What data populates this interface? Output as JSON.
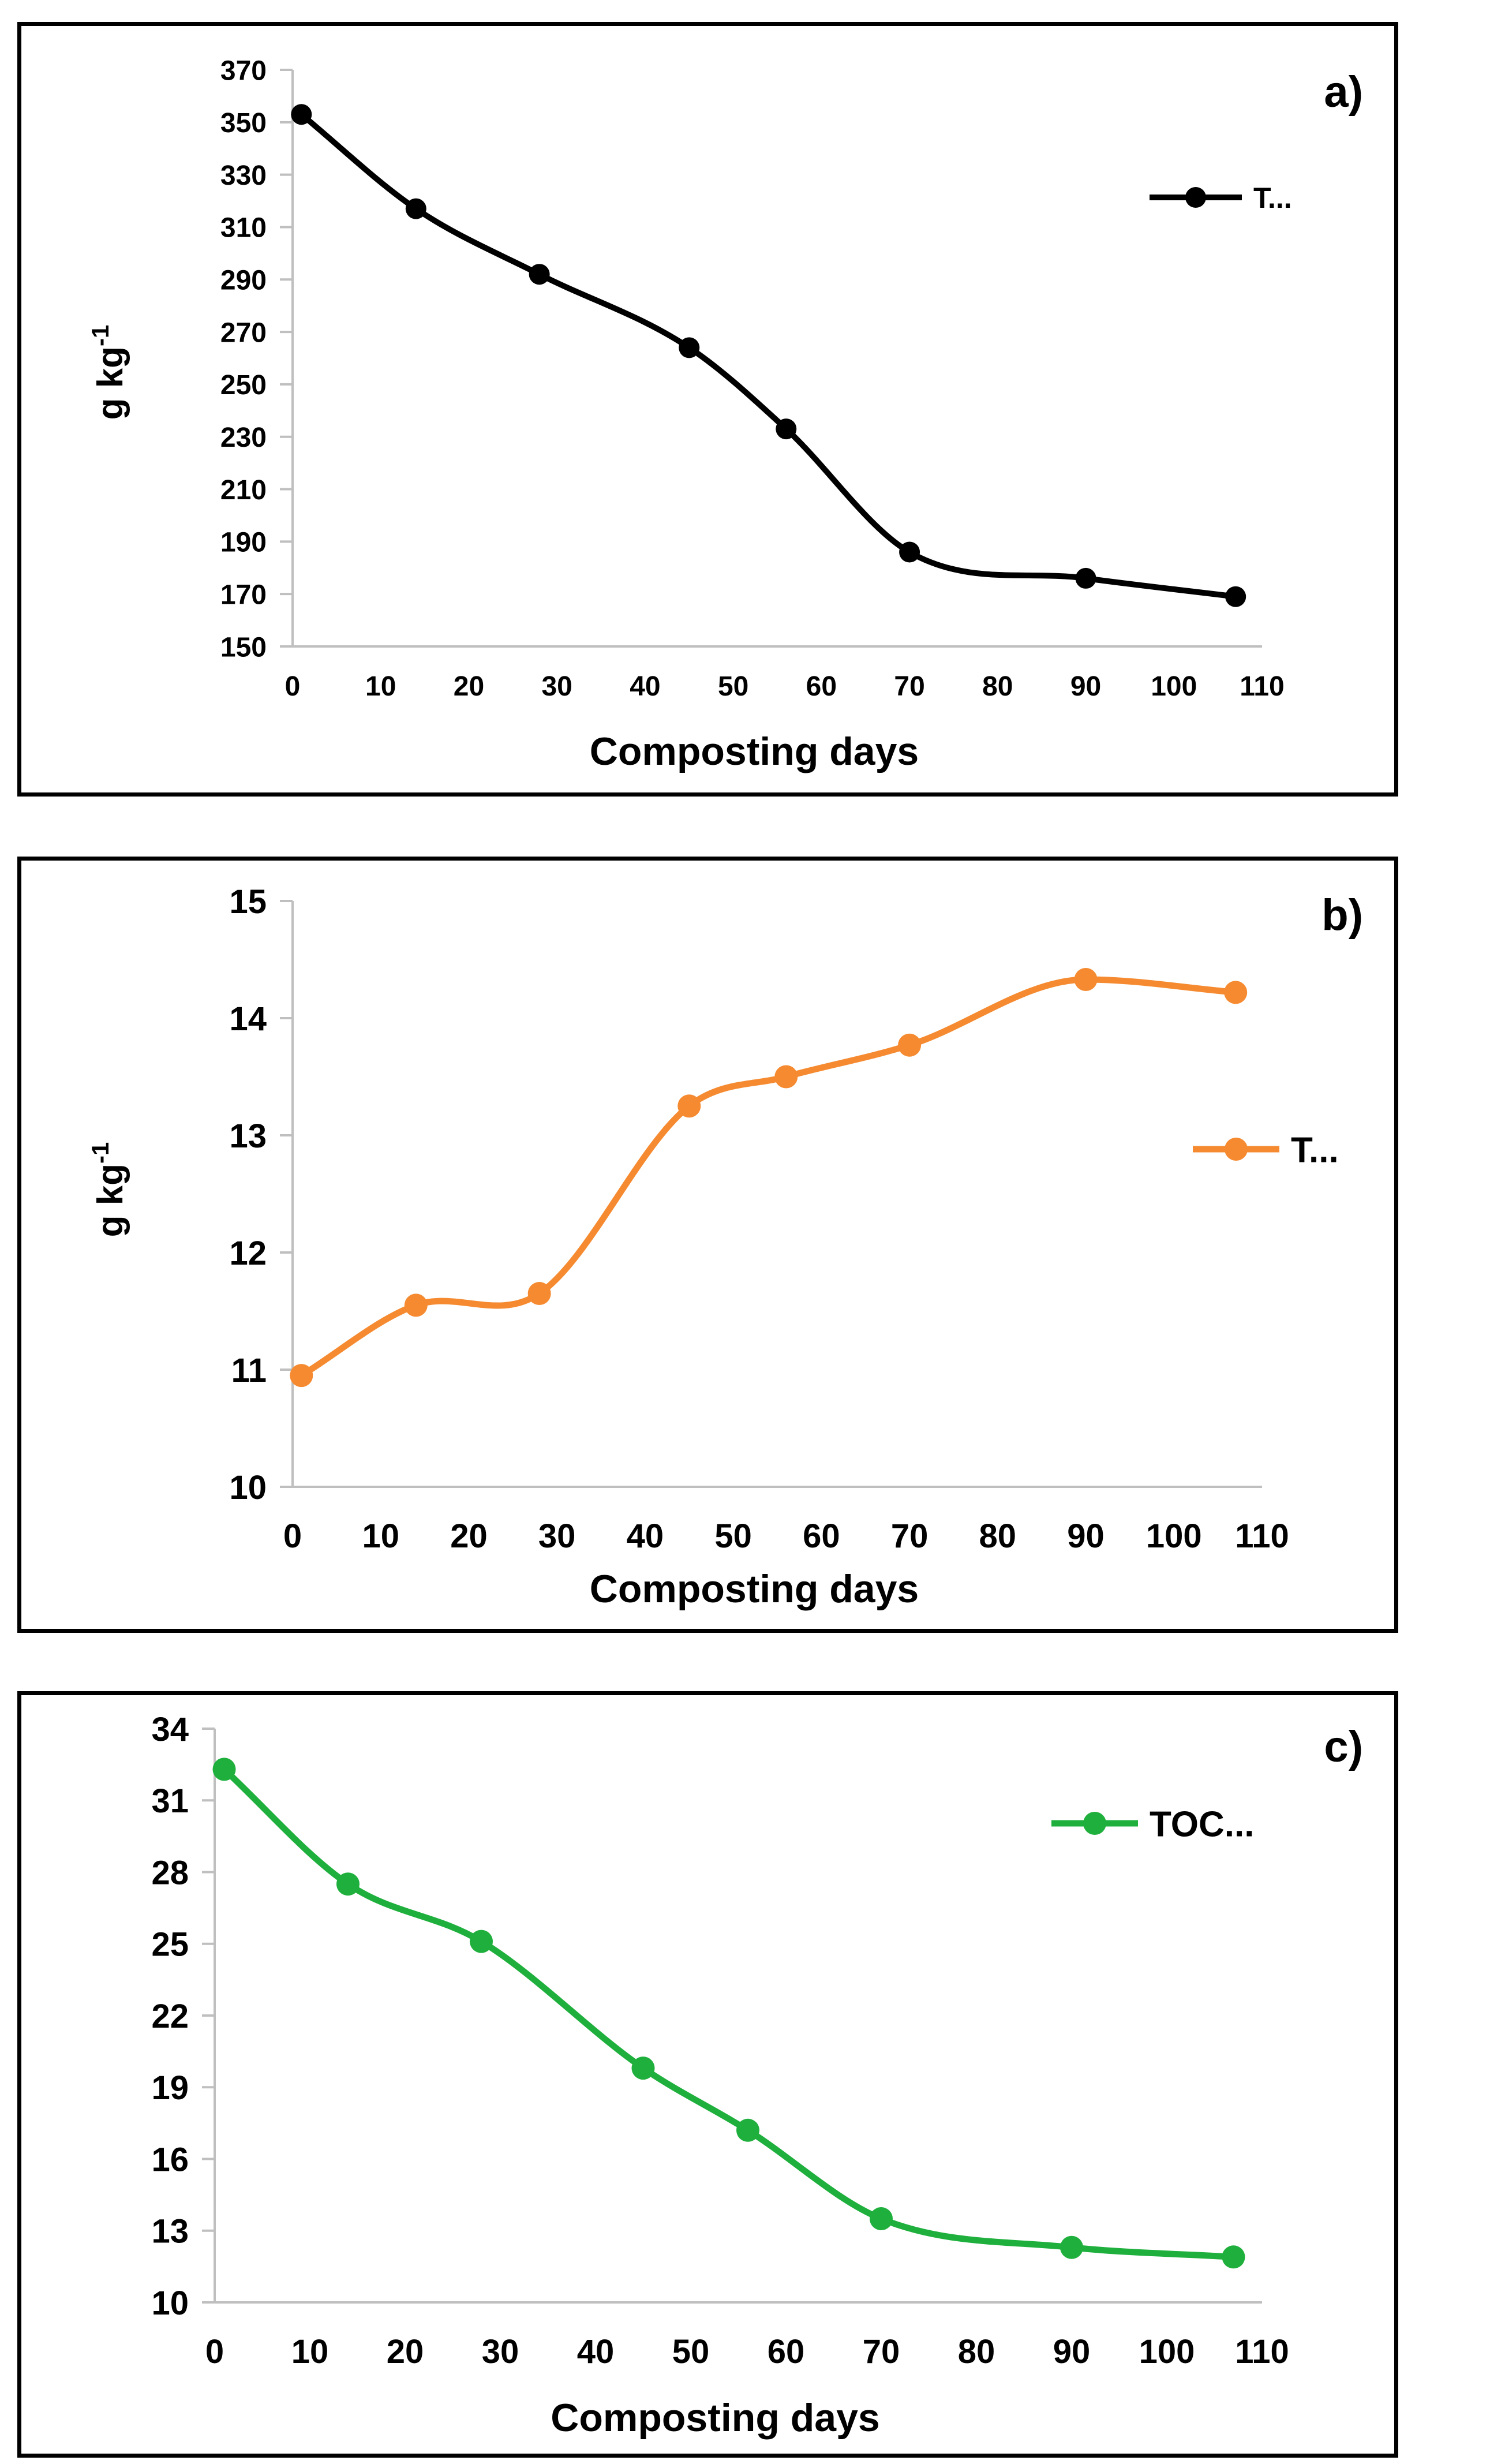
{
  "chart_data": [
    {
      "panel": "a)",
      "type": "line",
      "xlabel": "Composting days",
      "ylabel": "g kg",
      "ylabel_sup": "-1",
      "xlim": [
        0,
        110
      ],
      "ylim": [
        150,
        370
      ],
      "xticks": [
        0,
        10,
        20,
        30,
        40,
        50,
        60,
        70,
        80,
        90,
        100,
        110
      ],
      "yticks": [
        150,
        170,
        190,
        210,
        230,
        250,
        270,
        290,
        310,
        330,
        350,
        370
      ],
      "legend": "T...",
      "legend_position": "top-right",
      "color": "#000000",
      "series": [
        {
          "name": "T...",
          "x": [
            1,
            14,
            28,
            45,
            56,
            70,
            90,
            107
          ],
          "values": [
            353,
            317,
            292,
            264,
            233,
            186,
            176,
            169
          ]
        }
      ]
    },
    {
      "panel": "b)",
      "type": "line",
      "xlabel": "Composting days",
      "ylabel": "g kg",
      "ylabel_sup": "-1",
      "xlim": [
        0,
        110
      ],
      "ylim": [
        10,
        15
      ],
      "xticks": [
        0,
        10,
        20,
        30,
        40,
        50,
        60,
        70,
        80,
        90,
        100,
        110
      ],
      "yticks": [
        10,
        11,
        12,
        13,
        14,
        15
      ],
      "legend": "T...",
      "legend_position": "right",
      "color": "#F58A30",
      "series": [
        {
          "name": "T...",
          "x": [
            1,
            14,
            28,
            45,
            56,
            70,
            90,
            107
          ],
          "values": [
            10.95,
            11.55,
            11.65,
            13.25,
            13.5,
            13.77,
            14.33,
            14.22
          ]
        }
      ]
    },
    {
      "panel": "c)",
      "type": "line",
      "xlabel": "Composting days",
      "ylabel": "",
      "ylabel_sup": "",
      "xlim": [
        0,
        110
      ],
      "ylim": [
        10,
        34
      ],
      "xticks": [
        0,
        10,
        20,
        30,
        40,
        50,
        60,
        70,
        80,
        90,
        100,
        110
      ],
      "yticks": [
        10,
        13,
        16,
        19,
        22,
        25,
        28,
        31,
        34
      ],
      "legend": "TOC...",
      "legend_position": "top-right",
      "color": "#1EAF3C",
      "series": [
        {
          "name": "TOC...",
          "x": [
            1,
            14,
            28,
            45,
            56,
            70,
            90,
            107
          ],
          "values": [
            32.3,
            27.5,
            25.1,
            19.8,
            17.2,
            13.5,
            12.3,
            11.9
          ]
        }
      ]
    }
  ]
}
